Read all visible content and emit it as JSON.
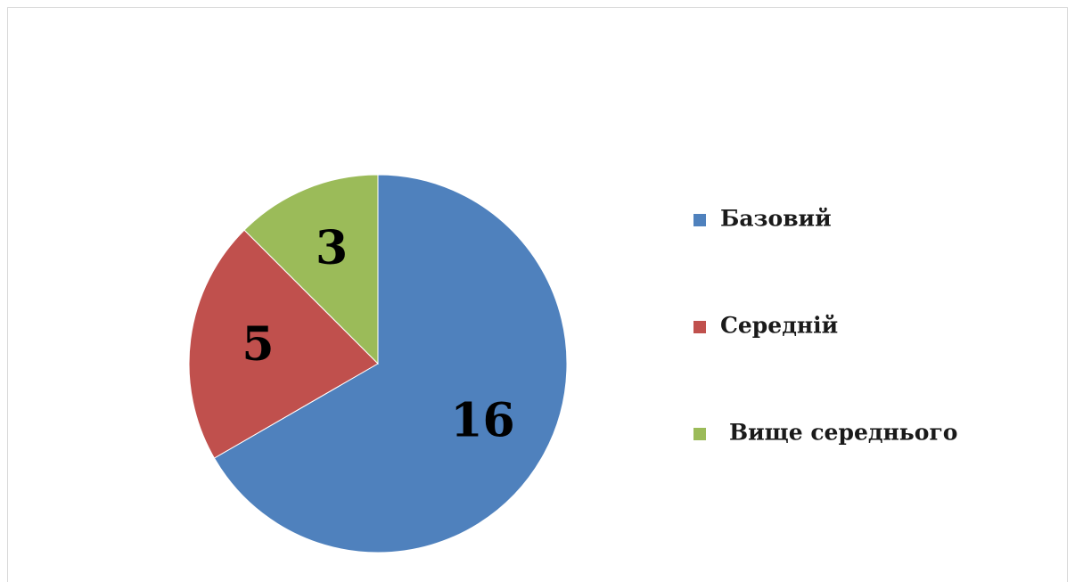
{
  "chart_data": {
    "type": "pie",
    "categories": [
      "Базовий",
      "Середній",
      "Вище середнього"
    ],
    "values": [
      16,
      5,
      3
    ],
    "colors": [
      "#4f81bd",
      "#c0504d",
      "#9bbb59"
    ],
    "legend": "right"
  }
}
